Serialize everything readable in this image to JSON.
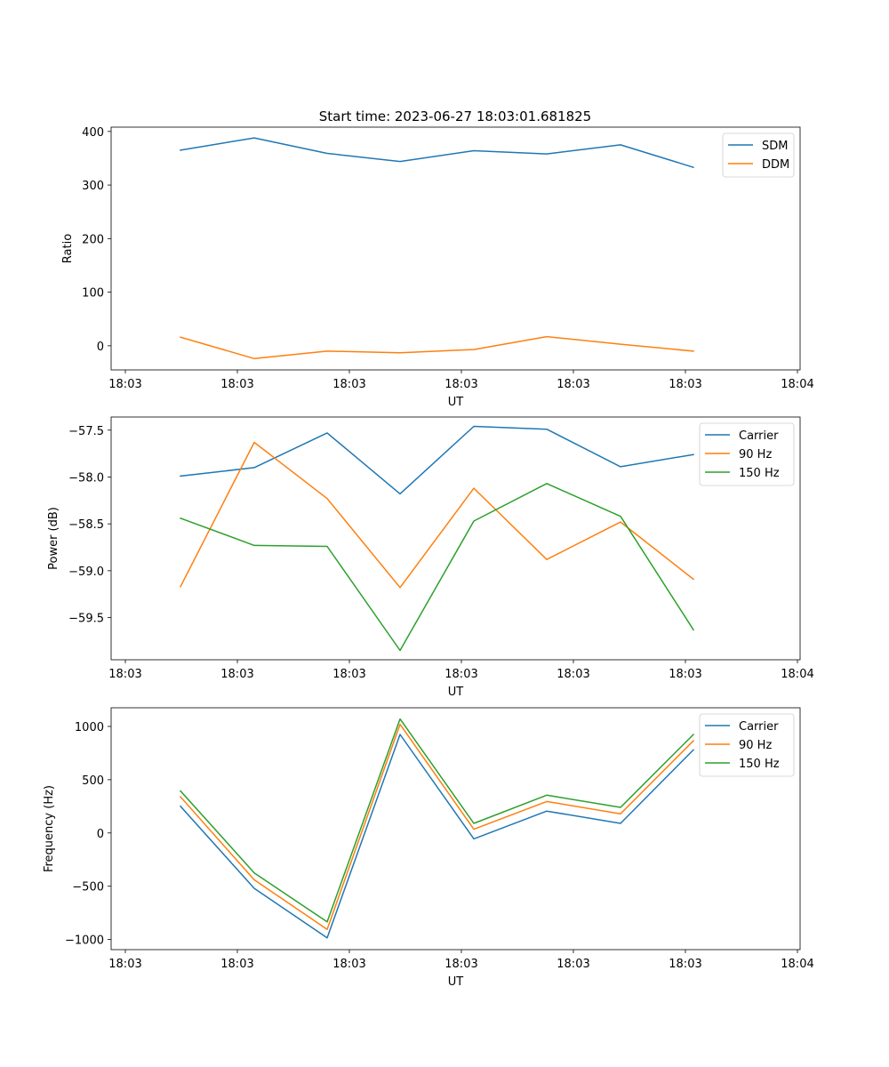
{
  "title": "Start time: 2023-06-27 18:03:01.681825",
  "colors": {
    "blue": "#1f77b4",
    "orange": "#ff7f0e",
    "green": "#2ca02c"
  },
  "chart_data": [
    {
      "type": "line",
      "xlabel": "UT",
      "ylabel": "Ratio",
      "xtick_labels": [
        "18:03",
        "18:03",
        "18:03",
        "18:03",
        "18:03",
        "18:03",
        "18:04"
      ],
      "ytick_labels": [
        "0",
        "100",
        "200",
        "300",
        "400"
      ],
      "yticks": [
        0,
        100,
        200,
        300,
        400
      ],
      "ylim": [
        -45,
        408
      ],
      "grid": false,
      "legend_position": "upper right",
      "series": [
        {
          "name": "SDM",
          "color": "#1f77b4",
          "values": [
            365,
            388,
            359,
            344,
            364,
            358,
            375,
            333
          ]
        },
        {
          "name": "DDM",
          "color": "#ff7f0e",
          "values": [
            16,
            -24,
            -10,
            -13,
            -7,
            17,
            3,
            -10
          ]
        }
      ]
    },
    {
      "type": "line",
      "xlabel": "UT",
      "ylabel": "Power (dB)",
      "xtick_labels": [
        "18:03",
        "18:03",
        "18:03",
        "18:03",
        "18:03",
        "18:03",
        "18:04"
      ],
      "ytick_labels": [
        "−59.5",
        "−59.0",
        "−58.5",
        "−58.0",
        "−57.5"
      ],
      "yticks": [
        -59.5,
        -59.0,
        -58.5,
        -58.0,
        -57.5
      ],
      "ylim": [
        -59.95,
        -57.36
      ],
      "grid": false,
      "legend_position": "upper right",
      "series": [
        {
          "name": "Carrier",
          "color": "#1f77b4",
          "values": [
            -57.99,
            -57.9,
            -57.53,
            -58.18,
            -57.46,
            -57.49,
            -57.89,
            -57.76
          ]
        },
        {
          "name": "90 Hz",
          "color": "#ff7f0e",
          "values": [
            -59.17,
            -57.63,
            -58.23,
            -59.18,
            -58.12,
            -58.88,
            -58.48,
            -59.09
          ]
        },
        {
          "name": "150 Hz",
          "color": "#2ca02c",
          "values": [
            -58.44,
            -58.73,
            -58.74,
            -59.85,
            -58.47,
            -58.07,
            -58.42,
            -59.63
          ]
        }
      ]
    },
    {
      "type": "line",
      "xlabel": "UT",
      "ylabel": "Frequency (Hz)",
      "xtick_labels": [
        "18:03",
        "18:03",
        "18:03",
        "18:03",
        "18:03",
        "18:03",
        "18:04"
      ],
      "ytick_labels": [
        "−1000",
        "−500",
        "0",
        "500",
        "1000"
      ],
      "yticks": [
        -1000,
        -500,
        0,
        500,
        1000
      ],
      "ylim": [
        -1095,
        1175
      ],
      "grid": false,
      "legend_position": "upper right",
      "series": [
        {
          "name": "Carrier",
          "color": "#1f77b4",
          "values": [
            250,
            -520,
            -985,
            925,
            -55,
            205,
            90,
            780
          ]
        },
        {
          "name": "90 Hz",
          "color": "#ff7f0e",
          "values": [
            340,
            -440,
            -905,
            1020,
            35,
            295,
            180,
            865
          ]
        },
        {
          "name": "150 Hz",
          "color": "#2ca02c",
          "values": [
            395,
            -375,
            -835,
            1070,
            90,
            355,
            240,
            925
          ]
        }
      ]
    }
  ]
}
